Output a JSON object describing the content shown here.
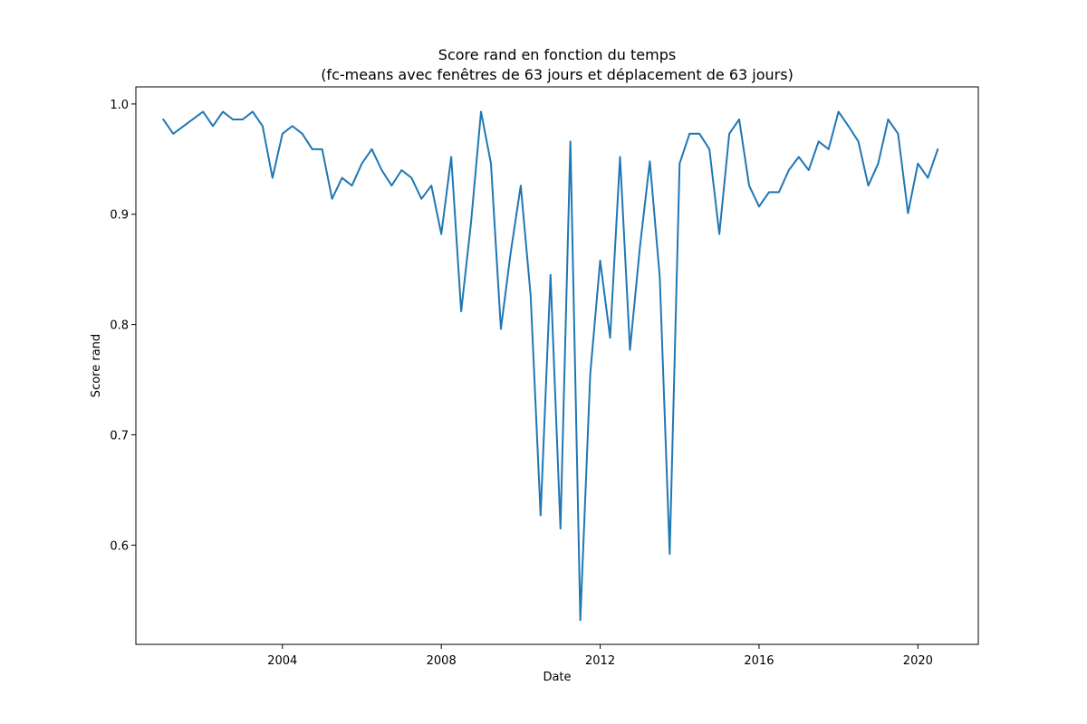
{
  "chart_data": {
    "type": "line",
    "title_line1": "Score rand en fonction du temps",
    "title_line2": "(fc-means avec fenêtres de 63 jours et déplacement de 63 jours)",
    "xlabel": "Date",
    "ylabel": "Score rand",
    "x_ticks": [
      "2004",
      "2008",
      "2012",
      "2016",
      "2020"
    ],
    "y_ticks": [
      "0.6",
      "0.7",
      "0.8",
      "0.9",
      "1.0"
    ],
    "xlim": [
      2000.31,
      2021.52
    ],
    "ylim": [
      0.51,
      1.0155
    ],
    "grid": false,
    "series_color": "#1f77b4",
    "series": [
      {
        "x": [
          2001.0,
          2001.25,
          2002.0,
          2002.25,
          2002.5,
          2002.75,
          2003.0,
          2003.25,
          2003.5,
          2003.75,
          2004.0,
          2004.25,
          2004.5,
          2004.75,
          2005.0,
          2005.25,
          2005.5,
          2005.75,
          2006.0,
          2006.25,
          2006.5,
          2006.75,
          2007.0,
          2007.25,
          2007.5,
          2007.75,
          2008.0,
          2008.25,
          2008.5,
          2008.75,
          2009.0,
          2009.25,
          2009.5,
          2009.75,
          2010.0,
          2010.25,
          2010.5,
          2010.75,
          2011.0,
          2011.25,
          2011.5,
          2011.75,
          2012.0,
          2012.25,
          2012.5,
          2012.75,
          2013.0,
          2013.25,
          2013.5,
          2013.75,
          2014.0,
          2014.25,
          2014.5,
          2014.75,
          2015.0,
          2015.25,
          2015.5,
          2015.75,
          2016.0,
          2016.25,
          2016.5,
          2016.75,
          2017.0,
          2017.25,
          2017.5,
          2017.75,
          2018.0,
          2018.25,
          2018.5,
          2018.75,
          2019.0,
          2019.25,
          2019.5,
          2019.75,
          2020.0,
          2020.25,
          2020.5
        ],
        "y": [
          0.986,
          0.973,
          0.993,
          0.98,
          0.993,
          0.986,
          0.986,
          0.993,
          0.98,
          0.933,
          0.973,
          0.98,
          0.973,
          0.959,
          0.959,
          0.914,
          0.933,
          0.926,
          0.946,
          0.959,
          0.94,
          0.926,
          0.94,
          0.933,
          0.914,
          0.926,
          0.882,
          0.952,
          0.812,
          0.893,
          0.993,
          0.946,
          0.796,
          0.866,
          0.926,
          0.826,
          0.627,
          0.845,
          0.615,
          0.966,
          0.532,
          0.755,
          0.858,
          0.788,
          0.952,
          0.777,
          0.87,
          0.948,
          0.843,
          0.592,
          0.946,
          0.973,
          0.973,
          0.959,
          0.882,
          0.973,
          0.986,
          0.926,
          0.907,
          0.92,
          0.92,
          0.94,
          0.952,
          0.94,
          0.966,
          0.959,
          0.993,
          0.98,
          0.966,
          0.926,
          0.946,
          0.986,
          0.973,
          0.901,
          0.946,
          0.933,
          0.959
        ]
      }
    ]
  }
}
